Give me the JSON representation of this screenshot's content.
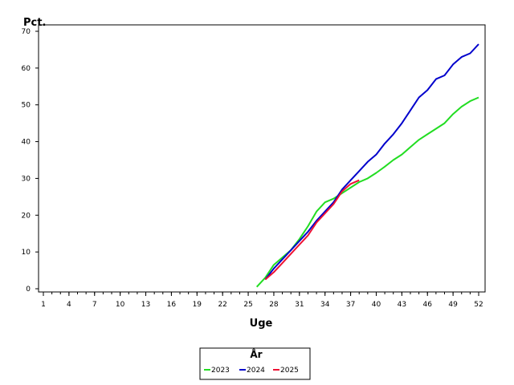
{
  "chart_data": {
    "type": "line",
    "ylabel": "Pct.",
    "xlabel": "Uge",
    "xlim": [
      1,
      52
    ],
    "ylim": [
      0,
      70
    ],
    "x_ticks": [
      1,
      4,
      7,
      10,
      13,
      16,
      19,
      22,
      25,
      28,
      31,
      34,
      37,
      40,
      43,
      46,
      49,
      52
    ],
    "y_ticks": [
      0,
      10,
      20,
      30,
      40,
      50,
      60,
      70
    ],
    "grid": false,
    "legend_title": "År",
    "legend_position": "bottom-center",
    "series": [
      {
        "name": "2023",
        "color": "#22dd22",
        "x": [
          26,
          27,
          28,
          29,
          30,
          31,
          32,
          33,
          34,
          35,
          36,
          37,
          38,
          39,
          40,
          41,
          42,
          43,
          44,
          45,
          46,
          47,
          48,
          49,
          50,
          51,
          52
        ],
        "y": [
          0.5,
          3,
          6.5,
          8.5,
          10.5,
          13.5,
          17,
          21,
          23.5,
          24.5,
          26,
          27.5,
          29,
          30,
          31.5,
          33.2,
          35,
          36.5,
          38.5,
          40.5,
          42,
          43.5,
          45,
          47.5,
          49.5,
          51,
          52
        ]
      },
      {
        "name": "2024",
        "color": "#0000cc",
        "x": [
          27,
          28,
          29,
          30,
          31,
          32,
          33,
          34,
          35,
          36,
          37,
          38,
          39,
          40,
          41,
          42,
          43,
          44,
          45,
          46,
          47,
          48,
          49,
          50,
          51,
          52
        ],
        "y": [
          2.5,
          5.5,
          8,
          10.5,
          13,
          15.5,
          18.5,
          21,
          23.5,
          27,
          29.5,
          32,
          34.5,
          36.5,
          39.5,
          42,
          45,
          48.5,
          52,
          54,
          57,
          58,
          61,
          63,
          64,
          66.5
        ]
      },
      {
        "name": "2025",
        "color": "#ee1133",
        "x": [
          27,
          28,
          29,
          30,
          31,
          32,
          33,
          34,
          35,
          36,
          37,
          38
        ],
        "y": [
          2.5,
          4.5,
          7,
          9.5,
          12,
          14.5,
          18,
          20.5,
          23,
          26.5,
          28.5,
          29.5
        ]
      }
    ]
  }
}
